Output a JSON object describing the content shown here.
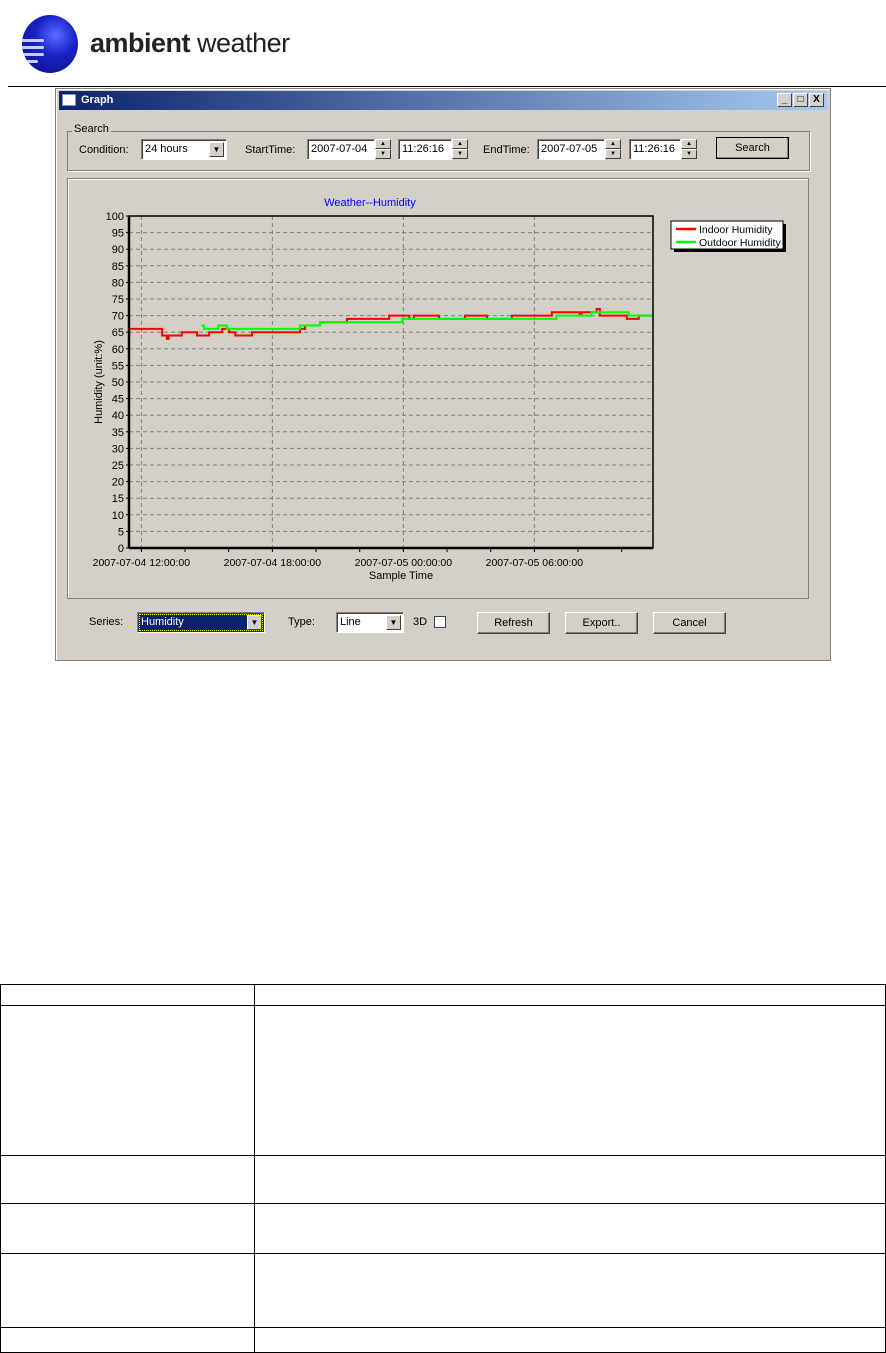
{
  "header": {
    "brand_bold": "ambient",
    "brand_light": " weather"
  },
  "window": {
    "title": "Graph",
    "minimize": "_",
    "maximize": "□",
    "close": "X"
  },
  "search": {
    "group_label": "Search",
    "condition_label": "Condition:",
    "condition_value": "24 hours",
    "start_label": "StartTime:",
    "start_date": "2007-07-04",
    "start_time": "11:26:16",
    "end_label": "EndTime:",
    "end_date": "2007-07-05",
    "end_time": "11:26:16",
    "search_button": "Search"
  },
  "controls": {
    "series_label": "Series:",
    "series_value": "Humidity",
    "type_label": "Type:",
    "type_value": "Line",
    "threed_label": "3D",
    "threed_checked": false,
    "refresh": "Refresh",
    "export": "Export..",
    "cancel": "Cancel"
  },
  "chart_data": {
    "type": "line",
    "title": "Weather--Humidity",
    "xlabel": "Sample Time",
    "ylabel": "Humidity (unit:%)",
    "xlim": [
      "2007-07-04 11:26",
      "2007-07-05 11:26"
    ],
    "ylim": [
      0,
      100
    ],
    "yticks": [
      0,
      5,
      10,
      15,
      20,
      25,
      30,
      35,
      40,
      45,
      50,
      55,
      60,
      65,
      70,
      75,
      80,
      85,
      90,
      95,
      100
    ],
    "xticks": [
      "2007-07-04 12:00:00",
      "2007-07-04 18:00:00",
      "2007-07-05 00:00:00",
      "2007-07-05 06:00:00"
    ],
    "grid": true,
    "legend_placement": "right",
    "series": [
      {
        "name": "Indoor Humidity",
        "color": "#ff0000",
        "step": true,
        "points": [
          [
            "2007-07-04 11:26",
            66
          ],
          [
            "2007-07-04 12:57",
            64
          ],
          [
            "2007-07-04 13:10",
            63
          ],
          [
            "2007-07-04 13:15",
            64
          ],
          [
            "2007-07-04 13:51",
            65
          ],
          [
            "2007-07-04 14:33",
            64
          ],
          [
            "2007-07-04 15:06",
            65
          ],
          [
            "2007-07-04 15:42",
            66
          ],
          [
            "2007-07-04 16:01",
            65
          ],
          [
            "2007-07-04 16:18",
            64
          ],
          [
            "2007-07-04 17:04",
            65
          ],
          [
            "2007-07-04 19:16",
            66
          ],
          [
            "2007-07-04 19:30",
            67
          ],
          [
            "2007-07-04 20:11",
            68
          ],
          [
            "2007-07-04 21:25",
            69
          ],
          [
            "2007-07-04 23:21",
            70
          ],
          [
            "2007-07-05 00:16",
            69
          ],
          [
            "2007-07-05 00:29",
            70
          ],
          [
            "2007-07-05 01:38",
            69
          ],
          [
            "2007-07-05 02:49",
            70
          ],
          [
            "2007-07-05 03:50",
            69
          ],
          [
            "2007-07-05 04:58",
            70
          ],
          [
            "2007-07-05 06:48",
            71
          ],
          [
            "2007-07-05 08:04",
            70
          ],
          [
            "2007-07-05 08:10",
            71
          ],
          [
            "2007-07-05 08:51",
            72
          ],
          [
            "2007-07-05 09:00",
            70
          ],
          [
            "2007-07-05 10:14",
            69
          ],
          [
            "2007-07-05 10:47",
            70
          ],
          [
            "2007-07-05 11:26",
            70
          ]
        ]
      },
      {
        "name": "Outdoor Humidity",
        "color": "#00ff00",
        "step": true,
        "points": [
          [
            "2007-07-04 14:47",
            67
          ],
          [
            "2007-07-04 14:52",
            66
          ],
          [
            "2007-07-04 15:31",
            67
          ],
          [
            "2007-07-04 15:55",
            66
          ],
          [
            "2007-07-04 19:16",
            67
          ],
          [
            "2007-07-04 20:11",
            68
          ],
          [
            "2007-07-04 23:57",
            69
          ],
          [
            "2007-07-05 07:01",
            70
          ],
          [
            "2007-07-05 08:37",
            71
          ],
          [
            "2007-07-05 10:19",
            70
          ],
          [
            "2007-07-05 11:26",
            70
          ]
        ]
      }
    ]
  },
  "table": {
    "rows": [
      [
        "",
        ""
      ],
      [
        "",
        ""
      ],
      [
        "",
        ""
      ],
      [
        "",
        ""
      ],
      [
        "",
        ""
      ],
      [
        "",
        ""
      ]
    ]
  }
}
